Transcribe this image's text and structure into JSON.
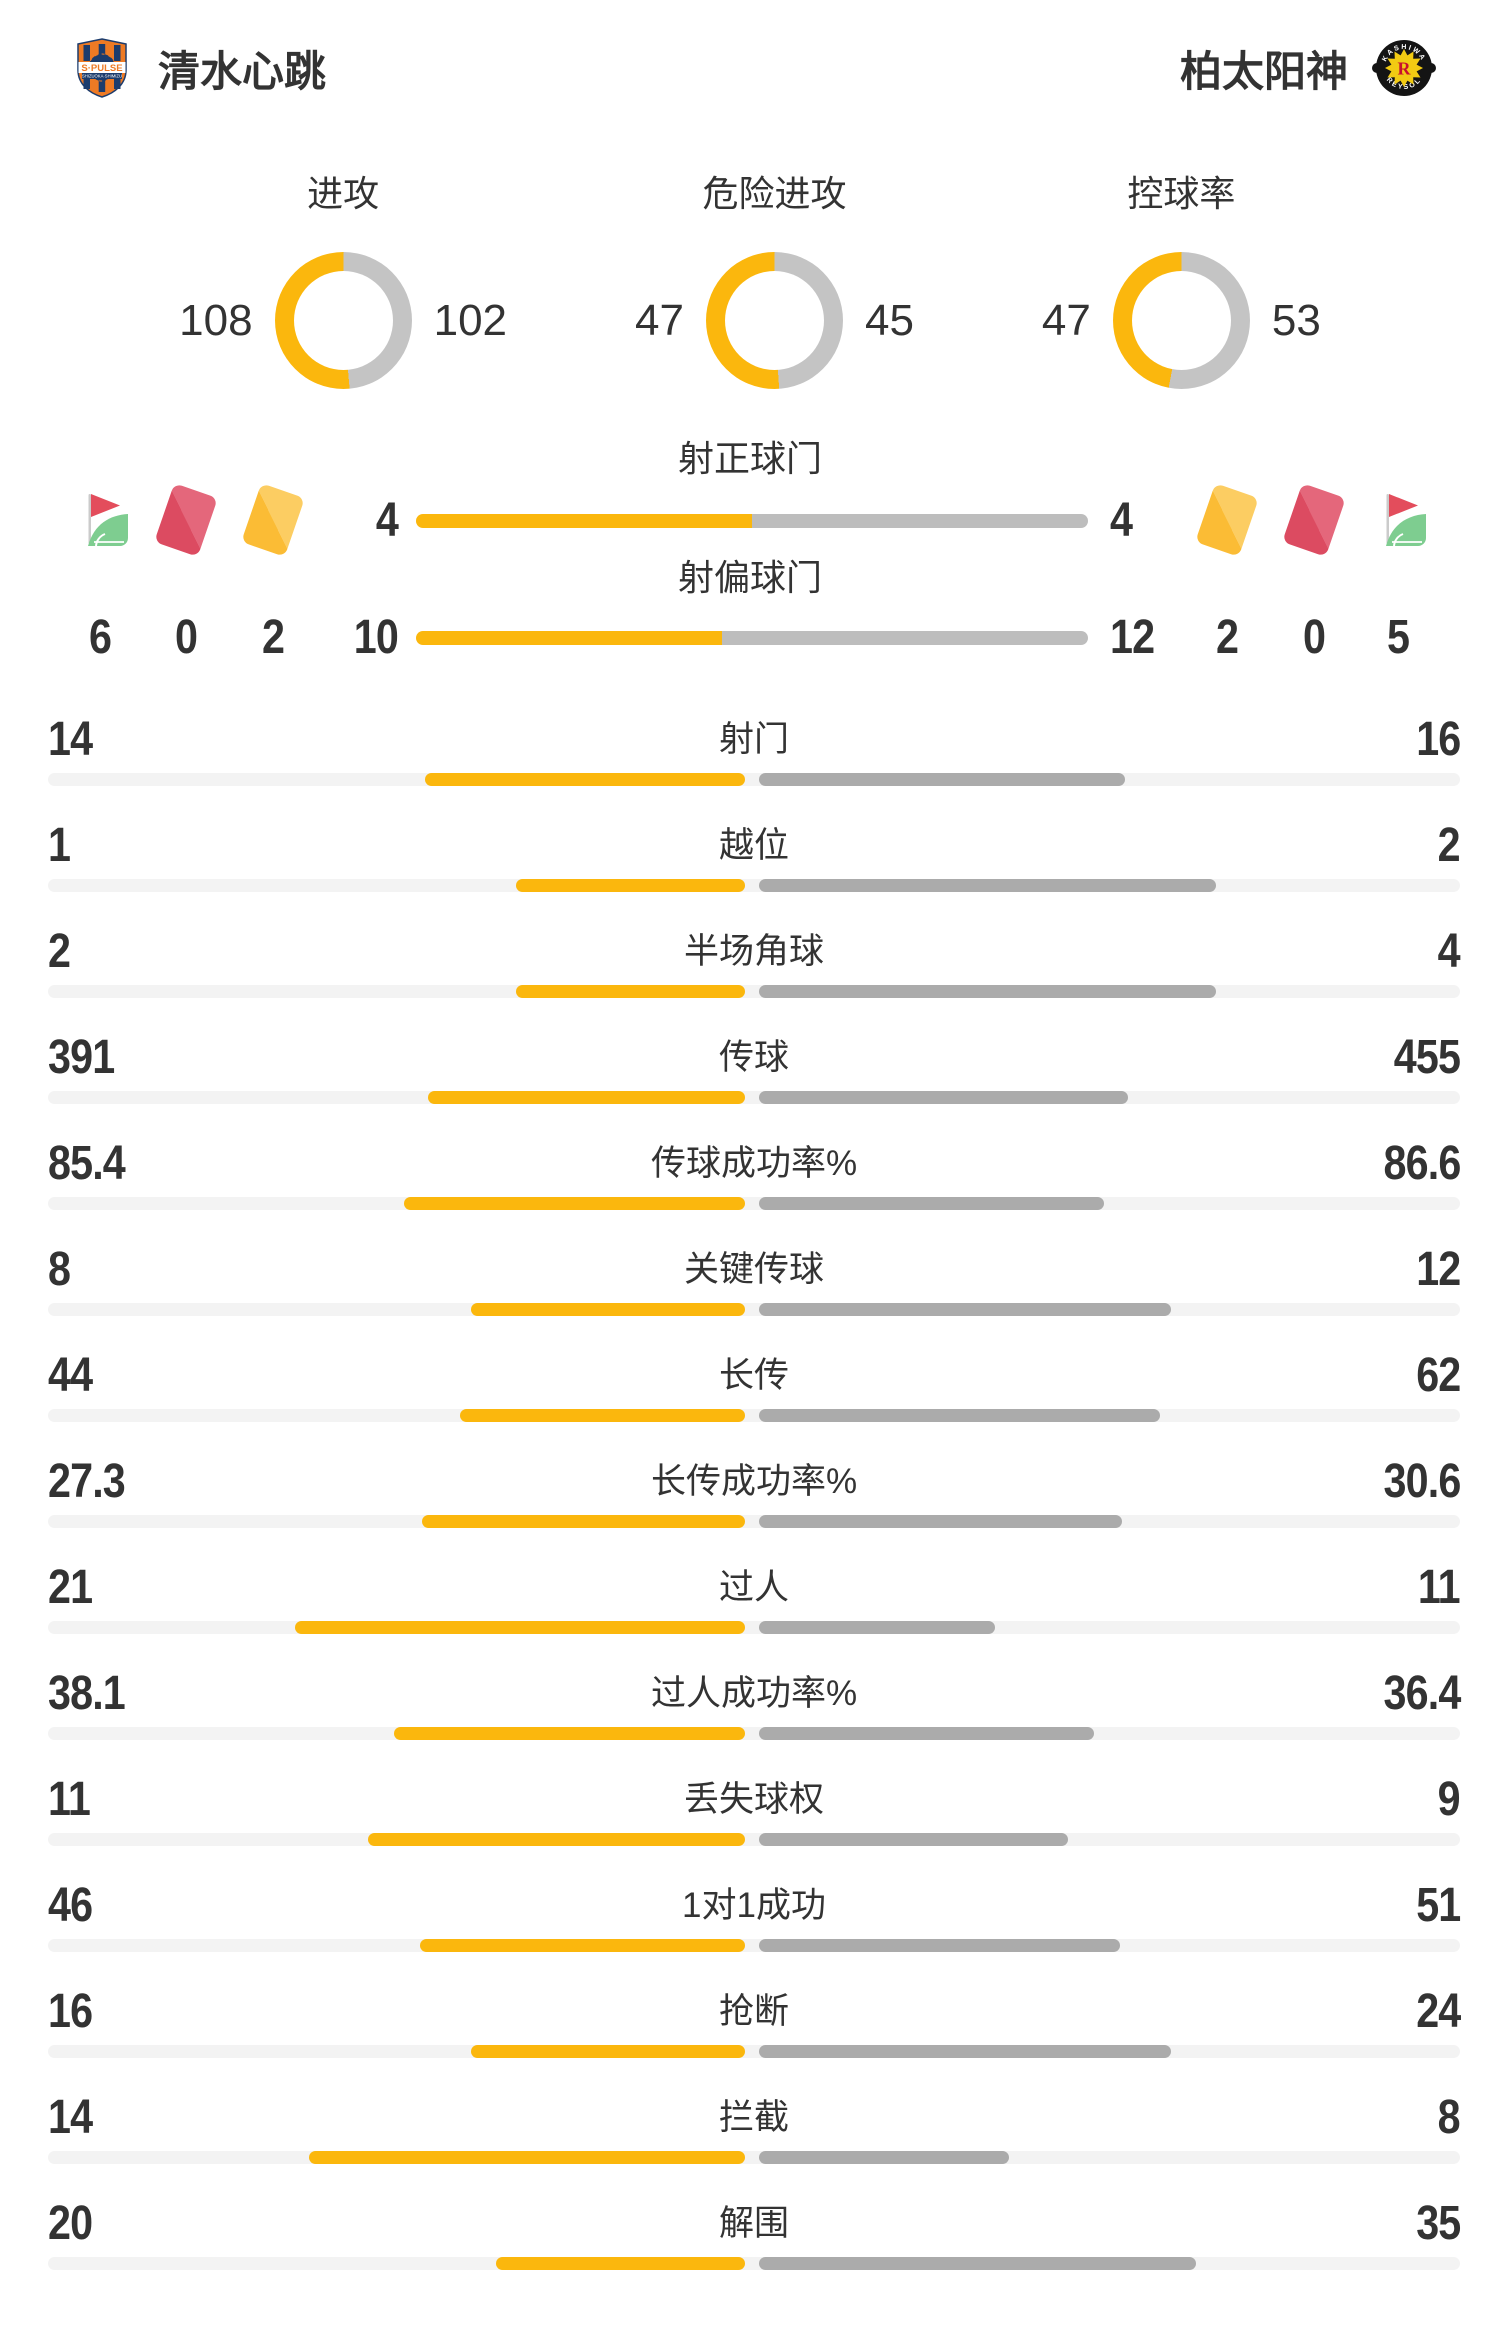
{
  "header": {
    "home_team": "清水心跳",
    "away_team": "柏太阳神",
    "home_logo": "s-pulse-crest",
    "away_logo": "kashiwa-reysol-crest"
  },
  "icons": {
    "home_discipline": [
      "corner-flag-icon",
      "red-card-icon",
      "yellow-card-icon"
    ],
    "away_discipline": [
      "yellow-card-icon",
      "red-card-icon",
      "corner-flag-icon"
    ]
  },
  "colors": {
    "home_accent": "#FBB70D",
    "away_stat_bar": "#ABABAB",
    "away_shot_bar": "#BDBDBD",
    "away_donut": "#C4C4C4",
    "track": "#F3F3F3",
    "text": "#333333",
    "red_card": "#DC4B61",
    "yellow_card": "#FBBC35",
    "flag_red": "#E34D5C",
    "flag_green": "#7ECD90"
  },
  "chart_data": {
    "type": "comparison-stats",
    "legend": "home values in yellow on left, away values in gray on right",
    "donuts": [
      {
        "type": "donut",
        "title": "进攻",
        "home": 108,
        "away": 102
      },
      {
        "type": "donut",
        "title": "危险进攻",
        "home": 47,
        "away": 45
      },
      {
        "type": "donut",
        "title": "控球率",
        "home": 47,
        "away": 53
      }
    ],
    "discipline": {
      "home": {
        "corner_kicks": 6,
        "red_cards": 0,
        "yellow_cards": 2
      },
      "away": {
        "yellow_cards": 2,
        "red_cards": 0,
        "corner_kicks": 5
      }
    },
    "shot_rows": [
      {
        "type": "bar",
        "title": "射正球门",
        "home": 4,
        "away": 4
      },
      {
        "type": "bar",
        "title": "射偏球门",
        "home": 10,
        "away": 12
      }
    ],
    "stat_rows": [
      {
        "type": "bar",
        "label": "射门",
        "home": 14,
        "away": 16
      },
      {
        "type": "bar",
        "label": "越位",
        "home": 1,
        "away": 2
      },
      {
        "type": "bar",
        "label": "半场角球",
        "home": 2,
        "away": 4
      },
      {
        "type": "bar",
        "label": "传球",
        "home": 391,
        "away": 455
      },
      {
        "type": "bar",
        "label": "传球成功率%",
        "home": 85.4,
        "away": 86.6
      },
      {
        "type": "bar",
        "label": "关键传球",
        "home": 8,
        "away": 12
      },
      {
        "type": "bar",
        "label": "长传",
        "home": 44,
        "away": 62
      },
      {
        "type": "bar",
        "label": "长传成功率%",
        "home": 27.3,
        "away": 30.6
      },
      {
        "type": "bar",
        "label": "过人",
        "home": 21,
        "away": 11
      },
      {
        "type": "bar",
        "label": "过人成功率%",
        "home": 38.1,
        "away": 36.4
      },
      {
        "type": "bar",
        "label": "丢失球权",
        "home": 11,
        "away": 9
      },
      {
        "type": "bar",
        "label": "1对1成功",
        "home": 46,
        "away": 51
      },
      {
        "type": "bar",
        "label": "抢断",
        "home": 16,
        "away": 24
      },
      {
        "type": "bar",
        "label": "拦截",
        "home": 14,
        "away": 8
      },
      {
        "type": "bar",
        "label": "解围",
        "home": 20,
        "away": 35
      }
    ]
  }
}
